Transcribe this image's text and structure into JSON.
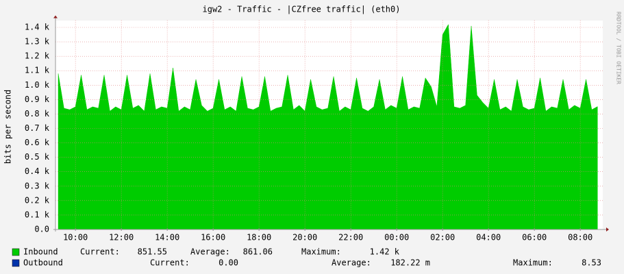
{
  "chart_data": {
    "type": "area",
    "title": "igw2 - Traffic - |CZfree traffic| (eth0)",
    "y_label": "bits per second",
    "watermark": "RRDTOOL / TOBI OETIKER",
    "stats_labels": [
      "Current:",
      "Average:",
      "Maximum:"
    ],
    "x": [
      9.25,
      9.5,
      9.75,
      10,
      10.25,
      10.5,
      10.75,
      11,
      11.25,
      11.5,
      11.75,
      12,
      12.25,
      12.5,
      12.75,
      13,
      13.25,
      13.5,
      13.75,
      14,
      14.25,
      14.5,
      14.75,
      15,
      15.25,
      15.5,
      15.75,
      16,
      16.25,
      16.5,
      16.75,
      17,
      17.25,
      17.5,
      17.75,
      18,
      18.25,
      18.5,
      18.75,
      19,
      19.25,
      19.5,
      19.75,
      20,
      20.25,
      20.5,
      20.75,
      21,
      21.25,
      21.5,
      21.75,
      22,
      22.25,
      22.5,
      22.75,
      23,
      23.25,
      23.5,
      23.75,
      24,
      24.25,
      24.5,
      24.75,
      25,
      25.25,
      25.5,
      25.75,
      26,
      26.25,
      26.5,
      26.75,
      27,
      27.25,
      27.5,
      27.75,
      28,
      28.25,
      28.5,
      28.75,
      29,
      29.25,
      29.5,
      29.75,
      30,
      30.25,
      30.5,
      30.75,
      31,
      31.25,
      31.5,
      31.75,
      32,
      32.25,
      32.5,
      32.75
    ],
    "series": [
      {
        "name": "Inbound",
        "color": "#00cc00",
        "current": "851.55",
        "average": "861.06",
        "maximum": "1.42 k",
        "values": [
          1080,
          840,
          830,
          850,
          1070,
          830,
          850,
          840,
          1070,
          820,
          850,
          830,
          1070,
          840,
          860,
          820,
          1080,
          830,
          850,
          840,
          1120,
          820,
          850,
          830,
          1040,
          860,
          820,
          840,
          1040,
          830,
          850,
          820,
          1060,
          840,
          830,
          850,
          1060,
          820,
          840,
          850,
          1070,
          830,
          860,
          820,
          1040,
          850,
          830,
          840,
          1060,
          820,
          850,
          830,
          1050,
          840,
          820,
          850,
          1040,
          830,
          860,
          840,
          1060,
          830,
          850,
          840,
          1050,
          990,
          850,
          1350,
          1420,
          850,
          840,
          860,
          1410,
          930,
          880,
          840,
          1040,
          830,
          850,
          820,
          1040,
          850,
          830,
          840,
          1050,
          820,
          850,
          840,
          1040,
          830,
          860,
          840,
          1040,
          830,
          851.55
        ]
      },
      {
        "name": "Outbound",
        "color": "#0033aa",
        "current": "0.00",
        "average": "182.22 m",
        "maximum": "8.53",
        "values": [
          0,
          0,
          0,
          0,
          0,
          0,
          0,
          0,
          0,
          0,
          0,
          0,
          0,
          0,
          0,
          0,
          0,
          0,
          0,
          0,
          0,
          0,
          0,
          0,
          0,
          0,
          0,
          0,
          0,
          0,
          0,
          0,
          0,
          0,
          0,
          0,
          0,
          0,
          0,
          0,
          0,
          0,
          0,
          0,
          0,
          0,
          0,
          0,
          0,
          0,
          0,
          0,
          0,
          0,
          0,
          0,
          0,
          0,
          0,
          0,
          0,
          0,
          0,
          0,
          0,
          0,
          0,
          0,
          0,
          0,
          0,
          0,
          0,
          0,
          0,
          0,
          0,
          0,
          0,
          0,
          0,
          0,
          0,
          0,
          0,
          0,
          0,
          0,
          0,
          0,
          0,
          0,
          0,
          0,
          0
        ]
      }
    ],
    "xlim": [
      9.13,
      32.98
    ],
    "xticks": [
      {
        "value": 10,
        "label": "10:00"
      },
      {
        "value": 12,
        "label": "12:00"
      },
      {
        "value": 14,
        "label": "14:00"
      },
      {
        "value": 16,
        "label": "16:00"
      },
      {
        "value": 18,
        "label": "18:00"
      },
      {
        "value": 20,
        "label": "20:00"
      },
      {
        "value": 22,
        "label": "22:00"
      },
      {
        "value": 24,
        "label": "00:00"
      },
      {
        "value": 26,
        "label": "02:00"
      },
      {
        "value": 28,
        "label": "04:00"
      },
      {
        "value": 30,
        "label": "06:00"
      },
      {
        "value": 32,
        "label": "08:00"
      }
    ],
    "ylim": [
      0,
      1450
    ],
    "yticks": [
      {
        "value": 0,
        "label": "0.0"
      },
      {
        "value": 100,
        "label": "0.1 k"
      },
      {
        "value": 200,
        "label": "0.2 k"
      },
      {
        "value": 300,
        "label": "0.3 k"
      },
      {
        "value": 400,
        "label": "0.4 k"
      },
      {
        "value": 500,
        "label": "0.5 k"
      },
      {
        "value": 600,
        "label": "0.6 k"
      },
      {
        "value": 700,
        "label": "0.7 k"
      },
      {
        "value": 800,
        "label": "0.8 k"
      },
      {
        "value": 900,
        "label": "0.9 k"
      },
      {
        "value": 1000,
        "label": "1.0 k"
      },
      {
        "value": 1100,
        "label": "1.1 k"
      },
      {
        "value": 1200,
        "label": "1.2 k"
      },
      {
        "value": 1300,
        "label": "1.3 k"
      },
      {
        "value": 1400,
        "label": "1.4 k"
      }
    ],
    "grid": true
  }
}
